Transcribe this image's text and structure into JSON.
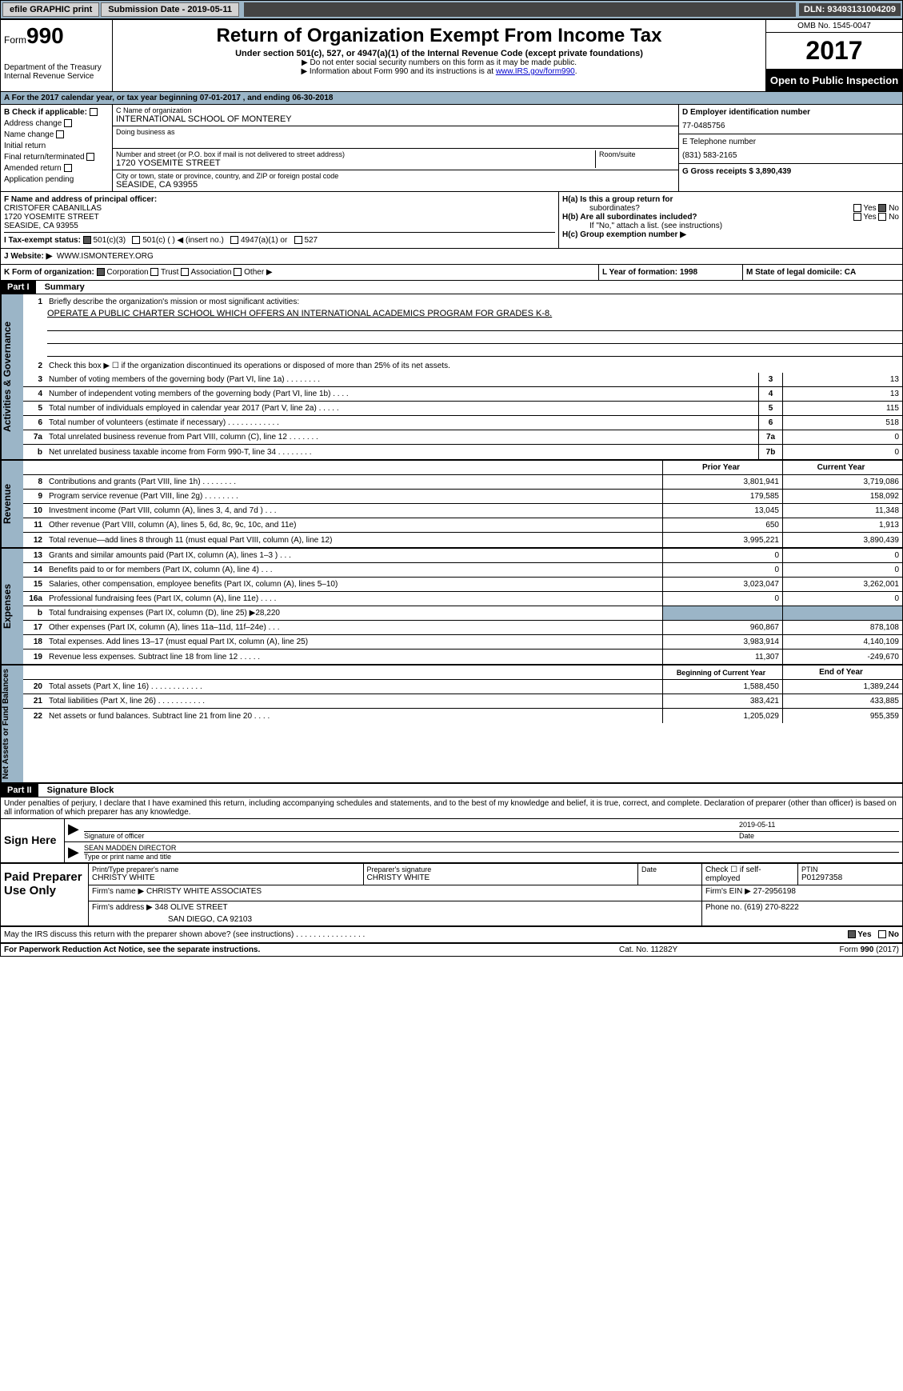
{
  "topbar": {
    "efile": "efile GRAPHIC print",
    "submission": "Submission Date - 2019-05-11",
    "dln": "DLN: 93493131004209"
  },
  "header": {
    "form_label": "Form",
    "form_no": "990",
    "dept1": "Department of the Treasury",
    "dept2": "Internal Revenue Service",
    "title": "Return of Organization Exempt From Income Tax",
    "subtitle": "Under section 501(c), 527, or 4947(a)(1) of the Internal Revenue Code (except private foundations)",
    "note1": "▶ Do not enter social security numbers on this form as it may be made public.",
    "note2": "▶ Information about Form 990 and its instructions is at ",
    "irs_link": "www.IRS.gov/form990",
    "omb": "OMB No. 1545-0047",
    "year": "2017",
    "open": "Open to Public Inspection"
  },
  "row_a": "A   For the 2017 calendar year, or tax year beginning 07-01-2017        , and ending 06-30-2018",
  "section_b": {
    "check_label": "B Check if applicable:",
    "addr_change": "Address change",
    "name_change": "Name change",
    "initial": "Initial return",
    "final": "Final return/terminated",
    "amended": "Amended return",
    "pending": "Application pending",
    "c_name_label": "C Name of organization",
    "c_name": "INTERNATIONAL SCHOOL OF MONTEREY",
    "dba_label": "Doing business as",
    "street_label": "Number and street (or P.O. box if mail is not delivered to street address)",
    "street": "1720 YOSEMITE STREET",
    "room_label": "Room/suite",
    "city_label": "City or town, state or province, country, and ZIP or foreign postal code",
    "city": "SEASIDE, CA  93955",
    "d_label": "D Employer identification number",
    "d_val": "77-0485756",
    "e_label": "E Telephone number",
    "e_val": "(831) 583-2165",
    "g_label": "G Gross receipts $ 3,890,439"
  },
  "row_f": {
    "f_label": "F Name and address of principal officer:",
    "f_name": "CRISTOFER CABANILLAS",
    "f_street": "1720 YOSEMITE STREET",
    "f_city": "SEASIDE, CA  93955",
    "ha": "H(a)   Is this a group return for",
    "ha2": "subordinates?",
    "hb": "H(b)   Are all subordinates included?",
    "hb_note": "If \"No,\" attach a list. (see instructions)",
    "hc": "H(c)   Group exemption number ▶",
    "yes": "Yes",
    "no": "No"
  },
  "row_i": {
    "label": "I     Tax-exempt status:",
    "opt1": "501(c)(3)",
    "opt2": "501(c) (    ) ◀ (insert no.)",
    "opt3": "4947(a)(1) or",
    "opt4": "527"
  },
  "row_j": {
    "label": "J    Website: ▶",
    "val": "WWW.ISMONTEREY.ORG"
  },
  "row_k": {
    "label": "K Form of organization:",
    "corp": "Corporation",
    "trust": "Trust",
    "assoc": "Association",
    "other": "Other ▶",
    "l_label": "L Year of formation: 1998",
    "m_label": "M State of legal domicile: CA"
  },
  "part1": {
    "hdr": "Part I",
    "title": "Summary",
    "line1": "Briefly describe the organization's mission or most significant activities:",
    "mission": "OPERATE A PUBLIC CHARTER SCHOOL WHICH OFFERS AN INTERNATIONAL ACADEMICS PROGRAM FOR GRADES K-8.",
    "line2": "Check this box ▶ ☐  if the organization discontinued its operations or disposed of more than 25% of its net assets.",
    "gov_label": "Activities & Governance",
    "lines_gov": [
      {
        "no": "3",
        "text": "Number of voting members of the governing body (Part VI, line 1a)    .    .    .    .    .    .    .    .",
        "box": "3",
        "val": "13"
      },
      {
        "no": "4",
        "text": "Number of independent voting members of the governing body (Part VI, line 1b)    .    .    .    .",
        "box": "4",
        "val": "13"
      },
      {
        "no": "5",
        "text": "Total number of individuals employed in calendar year 2017 (Part V, line 2a)    .    .    .    .    .",
        "box": "5",
        "val": "115"
      },
      {
        "no": "6",
        "text": "Total number of volunteers (estimate if necessary)    .    .    .    .    .    .    .    .    .    .    .    .",
        "box": "6",
        "val": "518"
      },
      {
        "no": "7a",
        "text": "Total unrelated business revenue from Part VIII, column (C), line 12    .    .    .    .    .    .    .",
        "box": "7a",
        "val": "0"
      },
      {
        "no": "b",
        "text": "Net unrelated business taxable income from Form 990-T, line 34    .    .    .    .    .    .    .    .",
        "box": "7b",
        "val": "0"
      }
    ],
    "prior_year": "Prior Year",
    "current_year": "Current Year",
    "rev_label": "Revenue",
    "lines_rev": [
      {
        "no": "8",
        "text": "Contributions and grants (Part VIII, line 1h)    .    .    .    .    .    .    .    .",
        "pv": "3,801,941",
        "cv": "3,719,086"
      },
      {
        "no": "9",
        "text": "Program service revenue (Part VIII, line 2g)    .    .    .    .    .    .    .    .",
        "pv": "179,585",
        "cv": "158,092"
      },
      {
        "no": "10",
        "text": "Investment income (Part VIII, column (A), lines 3, 4, and 7d )    .    .    .",
        "pv": "13,045",
        "cv": "11,348"
      },
      {
        "no": "11",
        "text": "Other revenue (Part VIII, column (A), lines 5, 6d, 8c, 9c, 10c, and 11e)",
        "pv": "650",
        "cv": "1,913"
      },
      {
        "no": "12",
        "text": "Total revenue—add lines 8 through 11 (must equal Part VIII, column (A), line 12)",
        "pv": "3,995,221",
        "cv": "3,890,439"
      }
    ],
    "exp_label": "Expenses",
    "lines_exp": [
      {
        "no": "13",
        "text": "Grants and similar amounts paid (Part IX, column (A), lines 1–3 )    .    .    .",
        "pv": "0",
        "cv": "0"
      },
      {
        "no": "14",
        "text": "Benefits paid to or for members (Part IX, column (A), line 4)    .    .    .",
        "pv": "0",
        "cv": "0"
      },
      {
        "no": "15",
        "text": "Salaries, other compensation, employee benefits (Part IX, column (A), lines 5–10)",
        "pv": "3,023,047",
        "cv": "3,262,001"
      },
      {
        "no": "16a",
        "text": "Professional fundraising fees (Part IX, column (A), line 11e)    .    .    .    .",
        "pv": "0",
        "cv": "0"
      },
      {
        "no": "b",
        "text": "Total fundraising expenses (Part IX, column (D), line 25) ▶28,220",
        "pv": "",
        "cv": "",
        "gray": true
      },
      {
        "no": "17",
        "text": "Other expenses (Part IX, column (A), lines 11a–11d, 11f–24e)    .    .    .",
        "pv": "960,867",
        "cv": "878,108"
      },
      {
        "no": "18",
        "text": "Total expenses. Add lines 13–17 (must equal Part IX, column (A), line 25)",
        "pv": "3,983,914",
        "cv": "4,140,109"
      },
      {
        "no": "19",
        "text": "Revenue less expenses. Subtract line 18 from line 12    .    .    .    .    .",
        "pv": "11,307",
        "cv": "-249,670"
      }
    ],
    "net_label": "Net Assets or Fund Balances",
    "beg_year": "Beginning of Current Year",
    "end_year": "End of Year",
    "lines_net": [
      {
        "no": "20",
        "text": "Total assets (Part X, line 16)    .    .    .    .    .    .    .    .    .    .    .    .",
        "pv": "1,588,450",
        "cv": "1,389,244"
      },
      {
        "no": "21",
        "text": "Total liabilities (Part X, line 26)    .    .    .    .    .    .    .    .    .    .    .",
        "pv": "383,421",
        "cv": "433,885"
      },
      {
        "no": "22",
        "text": "Net assets or fund balances. Subtract line 21 from line 20    .    .    .    .",
        "pv": "1,205,029",
        "cv": "955,359"
      }
    ]
  },
  "part2": {
    "hdr": "Part II",
    "title": "Signature Block",
    "penalty": "Under penalties of perjury, I declare that I have examined this return, including accompanying schedules and statements, and to the best of my knowledge and belief, it is true, correct, and complete. Declaration of preparer (other than officer) is based on all information of which preparer has any knowledge.",
    "sign_here": "Sign Here",
    "sig_officer": "Signature of officer",
    "sig_date": "2019-05-11",
    "date_label": "Date",
    "officer_name": "SEAN MADDEN  DIRECTOR",
    "name_title_label": "Type or print name and title",
    "paid": "Paid Preparer Use Only",
    "prep_name_label": "Print/Type preparer's name",
    "prep_name": "CHRISTY WHITE",
    "prep_sig_label": "Preparer's signature",
    "prep_sig": "CHRISTY WHITE",
    "prep_date_label": "Date",
    "check_se": "Check ☐ if self-employed",
    "ptin_label": "PTIN",
    "ptin": "P01297358",
    "firm_name_label": "Firm's name      ▶",
    "firm_name": "CHRISTY WHITE ASSOCIATES",
    "firm_ein_label": "Firm's EIN ▶",
    "firm_ein": "27-2956198",
    "firm_addr_label": "Firm's address ▶",
    "firm_addr1": "348 OLIVE STREET",
    "firm_addr2": "SAN DIEGO, CA  92103",
    "phone_label": "Phone no.",
    "phone": "(619) 270-8222",
    "discuss": "May the IRS discuss this return with the preparer shown above? (see instructions)    .    .    .    .    .    .    .    .    .    .    .    .    .    .    .    .",
    "yes": "Yes",
    "no": "No"
  },
  "footer": {
    "left": "For Paperwork Reduction Act Notice, see the separate instructions.",
    "mid": "Cat. No. 11282Y",
    "right": "Form 990 (2017)"
  }
}
